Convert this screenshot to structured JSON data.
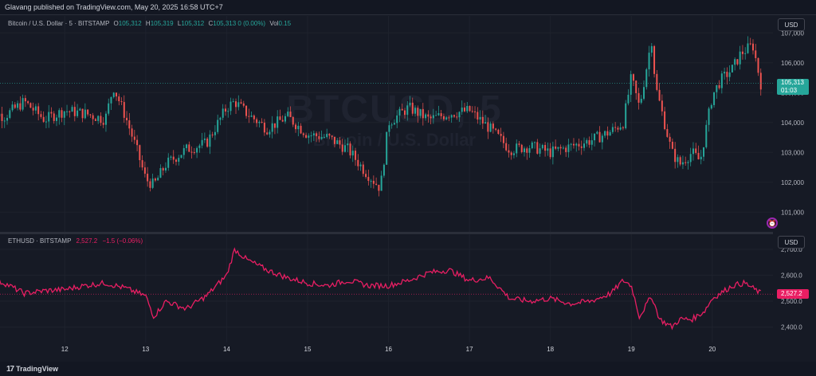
{
  "header": {
    "publisher": "Glavang published on TradingView.com, May 20, 2025 16:58 UTC+7"
  },
  "footer": {
    "brand": "TradingView",
    "brand_icon": "tradingview-logo-icon"
  },
  "colors": {
    "background": "#161a25",
    "btc_up": "#26a69a",
    "btc_down": "#ef5350",
    "eth_line": "#e91e63",
    "grid": "#1e222d"
  },
  "btc_pane": {
    "legend": {
      "name": "Bitcoin / U.S. Dollar · 5 · BITSTAMP",
      "o_label": "O",
      "o": "105,312",
      "h_label": "H",
      "h": "105,319",
      "l_label": "L",
      "l": "105,312",
      "c_label": "C",
      "c": "105,313",
      "change": "0 (0.00%)",
      "vol_label": "Vol",
      "vol": "0.15"
    },
    "watermark": {
      "symbol": "BTCUSD, 5",
      "description": "Bitcoin / U.S. Dollar"
    },
    "currency_button": "USD",
    "last_price": "105,313",
    "countdown": "01:03"
  },
  "eth_pane": {
    "legend": {
      "name": "ETHUSD · BITSTAMP",
      "value": "2,527.2",
      "change": "−1.5 (−0.06%)"
    },
    "currency_button": "USD",
    "last_price": "2,527.2"
  },
  "chart_data": [
    {
      "type": "candlestick",
      "title": "Bitcoin / U.S. Dollar · 5 · BITSTAMP",
      "x": [
        "11",
        "11.25",
        "11.5",
        "11.75",
        "12",
        "12.25",
        "12.5",
        "12.6",
        "12.75",
        "12.9",
        "13",
        "13.1",
        "13.25",
        "13.5",
        "13.75",
        "14",
        "14.1",
        "14.25",
        "14.5",
        "14.75",
        "15",
        "15.25",
        "15.5",
        "15.7",
        "15.9",
        "16",
        "16.25",
        "16.5",
        "16.75",
        "17",
        "17.25",
        "17.5",
        "17.75",
        "18",
        "18.25",
        "18.5",
        "18.75",
        "18.9",
        "19",
        "19.1",
        "19.25",
        "19.3",
        "19.4",
        "19.5",
        "19.6",
        "19.75",
        "19.85",
        "20",
        "20.1",
        "20.25",
        "20.35",
        "20.5",
        "20.6"
      ],
      "values": [
        104500,
        104200,
        104700,
        104100,
        104400,
        104300,
        104100,
        105200,
        104200,
        103000,
        102100,
        101900,
        102600,
        103100,
        103300,
        104500,
        104700,
        104300,
        103800,
        104200,
        103600,
        103500,
        103100,
        102400,
        101800,
        104000,
        104500,
        104100,
        104300,
        104400,
        103800,
        103100,
        103200,
        103000,
        103200,
        103400,
        103700,
        104000,
        105500,
        104500,
        106800,
        105200,
        104100,
        103000,
        102600,
        103000,
        102700,
        104900,
        105400,
        105800,
        106300,
        106600,
        105300
      ],
      "ylim": [
        100500,
        107300
      ],
      "y_ticks": [
        "107,000",
        "106,000",
        "105,000",
        "104,000",
        "103,000",
        "102,000",
        "101,000"
      ],
      "x_ticks": [
        "12",
        "13",
        "14",
        "15",
        "16",
        "17",
        "18",
        "19",
        "20"
      ]
    },
    {
      "type": "line",
      "title": "ETHUSD · BITSTAMP",
      "x": [
        "11",
        "11.25",
        "11.5",
        "11.75",
        "12",
        "12.25",
        "12.5",
        "12.75",
        "13",
        "13.1",
        "13.25",
        "13.5",
        "13.75",
        "14",
        "14.1",
        "14.25",
        "14.5",
        "14.75",
        "15",
        "15.25",
        "15.5",
        "15.75",
        "16",
        "16.25",
        "16.5",
        "16.75",
        "17",
        "17.25",
        "17.5",
        "17.75",
        "18",
        "18.25",
        "18.5",
        "18.75",
        "18.9",
        "19",
        "19.1",
        "19.25",
        "19.35",
        "19.5",
        "19.6",
        "19.75",
        "19.9",
        "20",
        "20.25",
        "20.4",
        "20.6"
      ],
      "values": [
        2590,
        2570,
        2530,
        2540,
        2545,
        2560,
        2570,
        2550,
        2520,
        2440,
        2500,
        2470,
        2520,
        2600,
        2700,
        2660,
        2620,
        2590,
        2570,
        2560,
        2580,
        2560,
        2560,
        2580,
        2610,
        2620,
        2580,
        2590,
        2510,
        2500,
        2510,
        2490,
        2500,
        2530,
        2580,
        2560,
        2440,
        2520,
        2430,
        2400,
        2430,
        2430,
        2460,
        2510,
        2560,
        2570,
        2530
      ],
      "ylim": [
        2340,
        2740
      ],
      "y_ticks": [
        "2,700.0",
        "2,600.0",
        "2,500.0",
        "2,400.0"
      ],
      "x_ticks": [
        "12",
        "13",
        "14",
        "15",
        "16",
        "17",
        "18",
        "19",
        "20"
      ]
    }
  ]
}
